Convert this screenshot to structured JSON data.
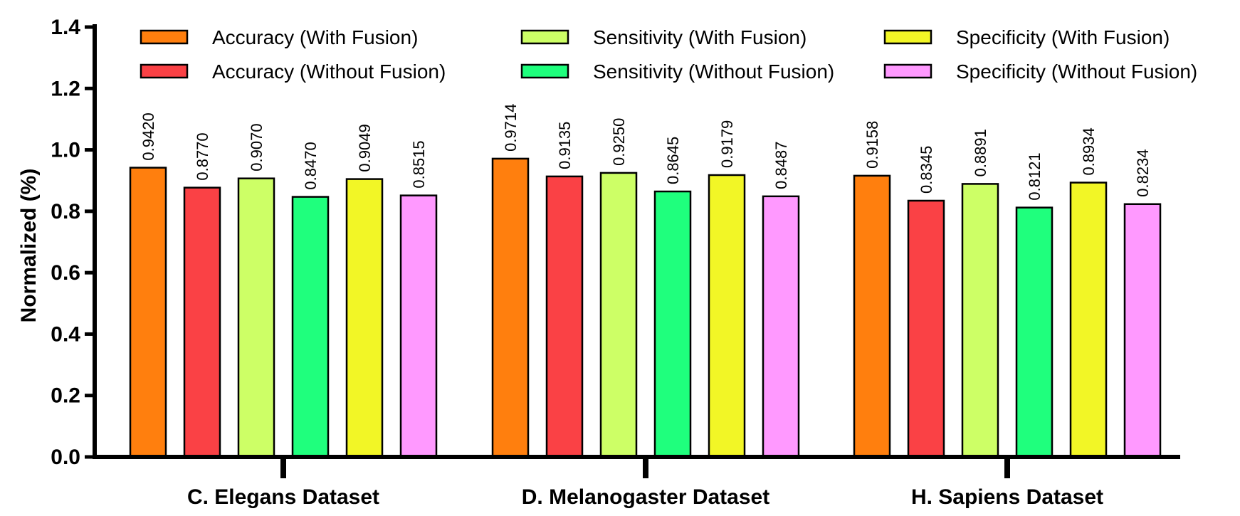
{
  "chart_data": {
    "type": "bar",
    "ylabel": "Normalized (%)",
    "xlabel": "",
    "ylim": [
      0,
      1.4
    ],
    "yticks": [
      "0.0",
      "0.2",
      "0.4",
      "0.6",
      "0.8",
      "1.0",
      "1.2",
      "1.4"
    ],
    "grid": false,
    "legend_position": "top",
    "categories": [
      "C. Elegans Dataset",
      "D. Melanogaster Dataset",
      "H. Sapiens Dataset"
    ],
    "series": [
      {
        "name": "Accuracy (With Fusion)",
        "color": "#FF7F0E",
        "values": [
          0.942,
          0.9714,
          0.9158
        ],
        "labels": [
          "0.9420",
          "0.9714",
          "0.9158"
        ]
      },
      {
        "name": "Accuracy (Without Fusion)",
        "color": "#FA4145",
        "values": [
          0.877,
          0.9135,
          0.8345
        ],
        "labels": [
          "0.8770",
          "0.9135",
          "0.8345"
        ]
      },
      {
        "name": "Sensitivity (With Fusion)",
        "color": "#CDFF66",
        "values": [
          0.907,
          0.925,
          0.8891
        ],
        "labels": [
          "0.9070",
          "0.9250",
          "0.8891"
        ]
      },
      {
        "name": "Sensitivity (Without Fusion)",
        "color": "#1FFF7D",
        "values": [
          0.847,
          0.8645,
          0.8121
        ],
        "labels": [
          "0.8470",
          "0.8645",
          "0.8121"
        ]
      },
      {
        "name": "Specificity (With Fusion)",
        "color": "#F2F626",
        "values": [
          0.9049,
          0.9179,
          0.8934
        ],
        "labels": [
          "0.9049",
          "0.9179",
          "0.8934"
        ]
      },
      {
        "name": "Specificity (Without Fusion)",
        "color": "#FF99FF",
        "values": [
          0.8515,
          0.8487,
          0.8234
        ],
        "labels": [
          "0.8515",
          "0.8487",
          "0.8234"
        ]
      }
    ]
  }
}
